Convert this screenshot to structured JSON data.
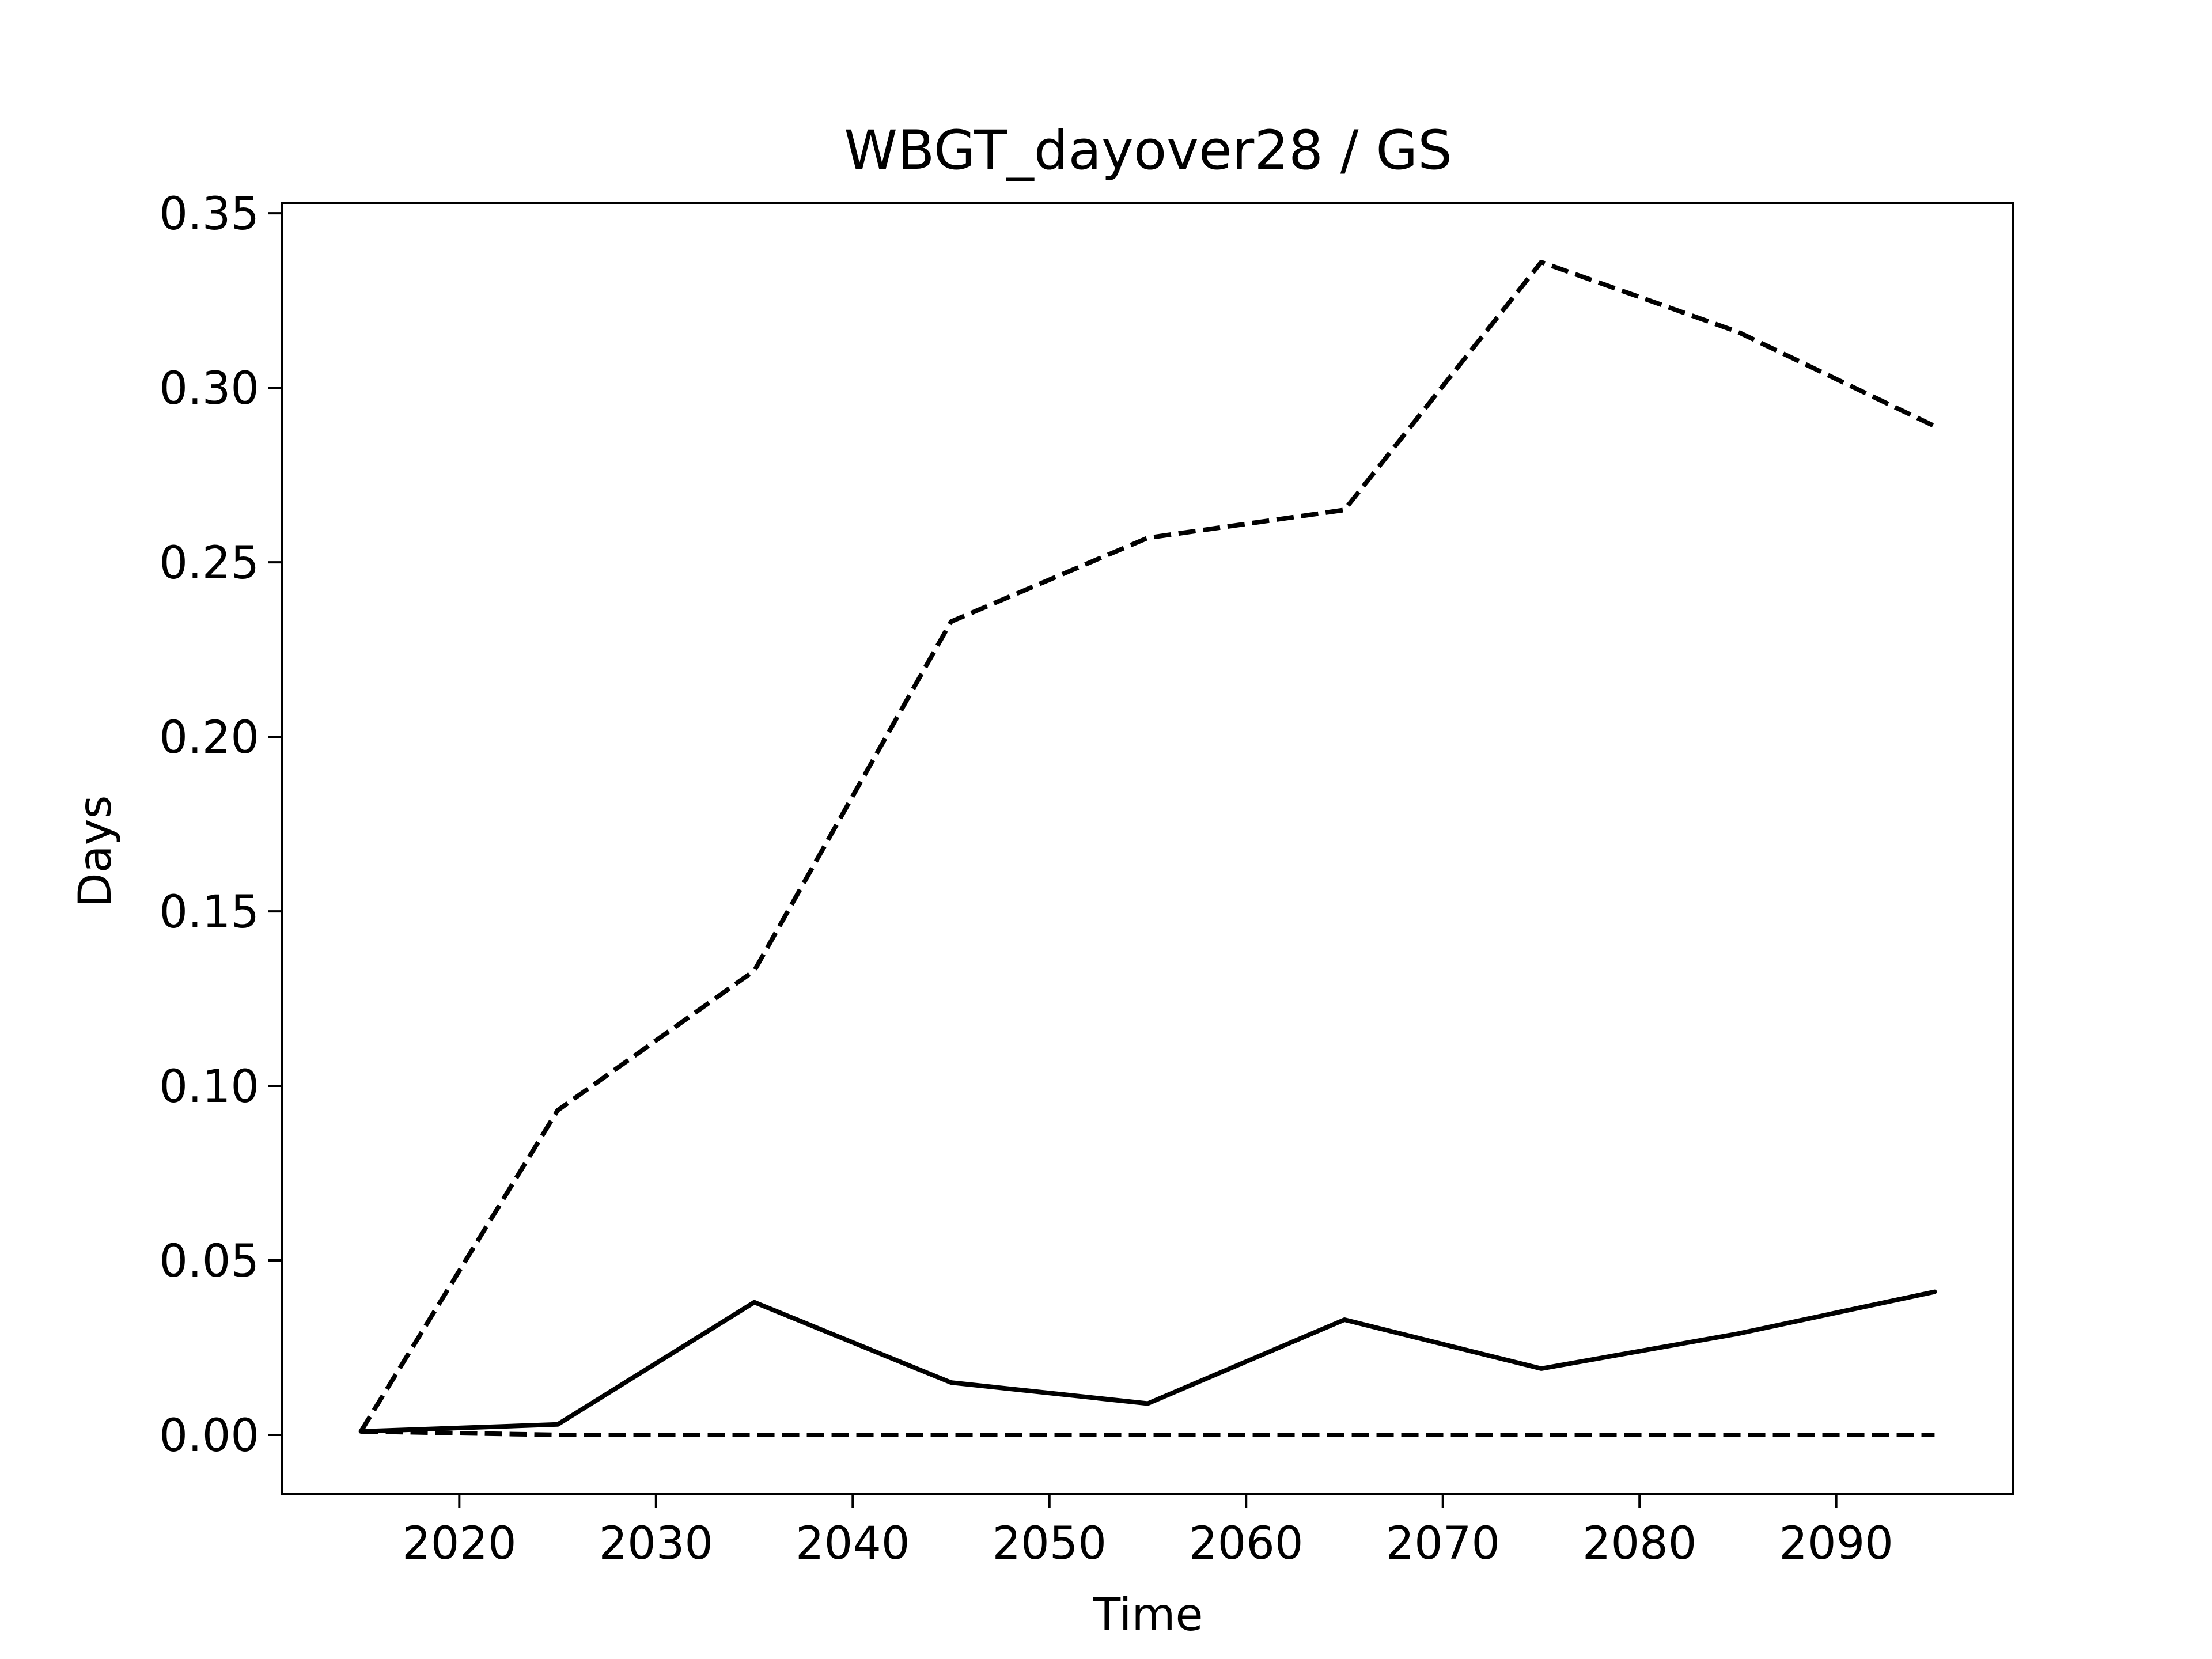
{
  "chart_data": {
    "type": "line",
    "title": "WBGT_dayover28 / GS",
    "xlabel": "Time",
    "ylabel": "Days",
    "xlim": [
      2011,
      2099
    ],
    "ylim": [
      -0.017,
      0.353
    ],
    "x_ticks": [
      2020,
      2030,
      2040,
      2050,
      2060,
      2070,
      2080,
      2090
    ],
    "y_ticks": [
      0.0,
      0.05,
      0.1,
      0.15,
      0.2,
      0.25,
      0.3,
      0.35
    ],
    "x_tick_labels": [
      "2020",
      "2030",
      "2040",
      "2050",
      "2060",
      "2070",
      "2080",
      "2090"
    ],
    "y_tick_labels": [
      "0.00",
      "0.05",
      "0.10",
      "0.15",
      "0.20",
      "0.25",
      "0.30",
      "0.35"
    ],
    "x": [
      2015,
      2025,
      2035,
      2045,
      2055,
      2065,
      2075,
      2085,
      2095
    ],
    "grid": false,
    "series": [
      {
        "style": "solid",
        "color": "#000000",
        "values": [
          0.001,
          0.003,
          0.038,
          0.015,
          0.009,
          0.033,
          0.019,
          0.029,
          0.041
        ]
      },
      {
        "style": "dashed",
        "color": "#000000",
        "values": [
          0.001,
          0.093,
          0.133,
          0.233,
          0.257,
          0.265,
          0.336,
          0.316,
          0.289
        ]
      },
      {
        "style": "dashed",
        "color": "#000000",
        "values": [
          0.001,
          0.0,
          0.0,
          0.0,
          0.0,
          0.0,
          0.0,
          0.0,
          0.0
        ]
      }
    ]
  }
}
